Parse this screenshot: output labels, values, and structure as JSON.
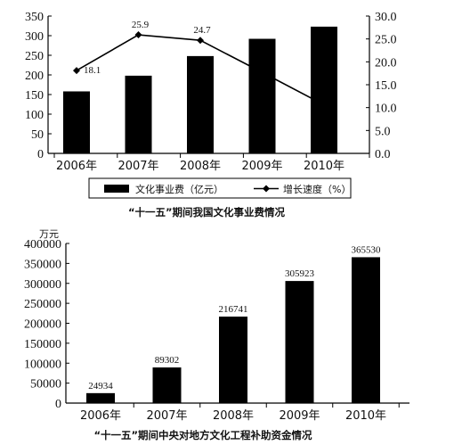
{
  "chart_data": [
    {
      "type": "bar",
      "title": "“十一五”期间我国文化事业费情况",
      "categories": [
        "2006年",
        "2007年",
        "2008年",
        "2009年",
        "2010年"
      ],
      "series": [
        {
          "name": "文化事业费（亿元）",
          "type": "bar",
          "axis": "left",
          "values": [
            158,
            198,
            248,
            292,
            323
          ]
        },
        {
          "name": "增长速度（%）",
          "type": "line",
          "axis": "right",
          "values": [
            18.1,
            25.9,
            24.7,
            17.7,
            10.6
          ],
          "labels": [
            "18.1",
            "25.9",
            "24.7",
            "",
            ""
          ]
        }
      ],
      "ylim_left": [
        0,
        350
      ],
      "yticks_left": [
        "0",
        "50",
        "100",
        "150",
        "200",
        "250",
        "300",
        "350"
      ],
      "ylim_right": [
        0,
        30
      ],
      "yticks_right": [
        "0.0",
        "5.0",
        "10.0",
        "15.0",
        "20.0",
        "25.0",
        "30.0"
      ],
      "legend_position": "bottom",
      "grid": false,
      "colors": {
        "bar": "#000000",
        "line": "#000000"
      }
    },
    {
      "type": "bar",
      "title": "“十一五”期间中央对地方文化工程补助资金情况",
      "ylabel": "万元",
      "categories": [
        "2006年",
        "2007年",
        "2008年",
        "2009年",
        "2010年"
      ],
      "values": [
        24934,
        89302,
        216741,
        305923,
        365530
      ],
      "value_labels": [
        "24934",
        "89302",
        "216741",
        "305923",
        "365530"
      ],
      "ylim": [
        0,
        400000
      ],
      "yticks": [
        "0",
        "50000",
        "100000",
        "150000",
        "200000",
        "250000",
        "300000",
        "350000",
        "400000"
      ],
      "grid": false,
      "colors": {
        "bar": "#000000"
      }
    }
  ]
}
